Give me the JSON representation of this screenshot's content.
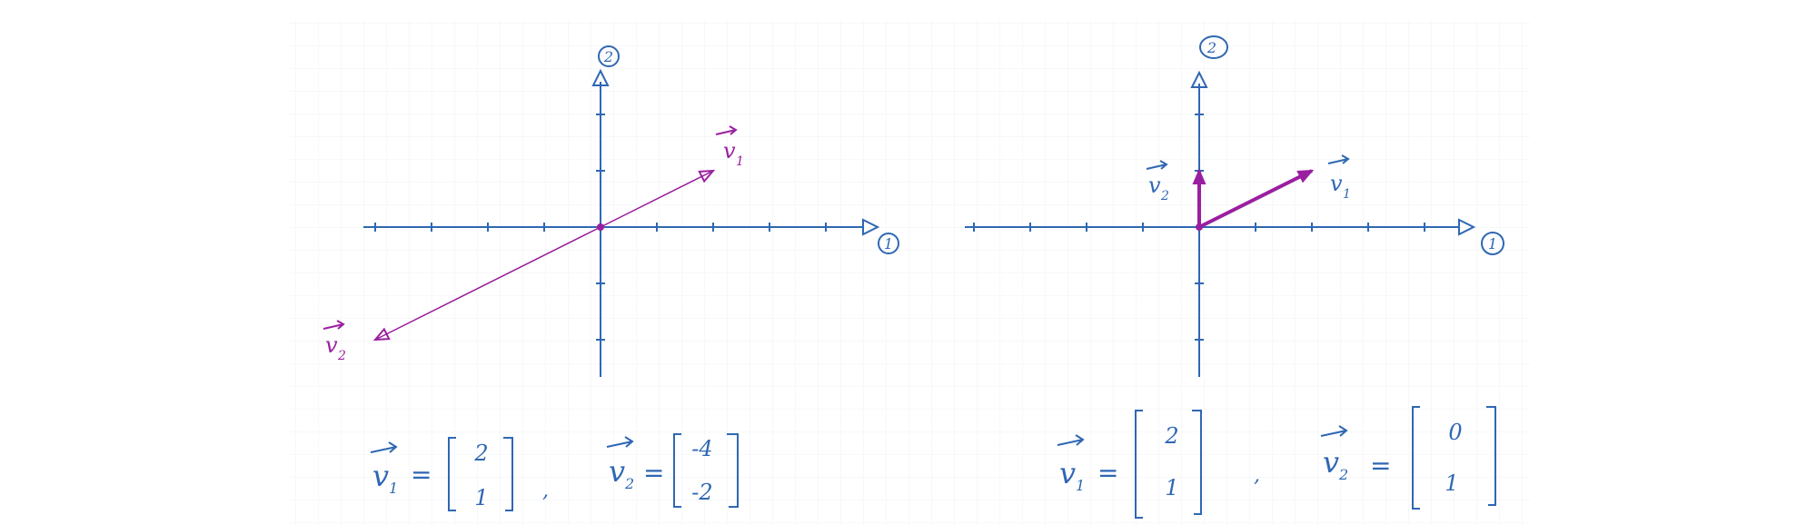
{
  "colors": {
    "axis": "#2f67b3",
    "vector": "#9a1fa0",
    "grid": "#eef0f4",
    "background": "#ffffff"
  },
  "left_plot": {
    "axis1_label": "1",
    "axis2_label": "2",
    "v1_label": "v",
    "v1_sub": "1",
    "v2_label": "v",
    "v2_sub": "2",
    "vectors": [
      {
        "name": "v1",
        "x": 2,
        "y": 1
      },
      {
        "name": "v2",
        "x": -4,
        "y": -2
      }
    ],
    "x_range": [
      -4,
      4
    ],
    "y_range": [
      -2,
      2
    ]
  },
  "right_plot": {
    "axis1_label": "1",
    "axis2_label": "2",
    "v1_label": "v",
    "v1_sub": "1",
    "v2_label": "v",
    "v2_sub": "2",
    "vectors": [
      {
        "name": "v1",
        "x": 2,
        "y": 1
      },
      {
        "name": "v2",
        "x": 0,
        "y": 1
      }
    ],
    "x_range": [
      -4,
      4
    ],
    "y_range": [
      -2,
      2
    ]
  },
  "equations": {
    "left": {
      "v1_name": "v",
      "v1_sub": "1",
      "v1_top": "2",
      "v1_bottom": "1",
      "separator": ",",
      "v2_name": "v",
      "v2_sub": "2",
      "v2_top": "-4",
      "v2_bottom": "-2",
      "equals": "="
    },
    "right": {
      "v1_name": "v",
      "v1_sub": "1",
      "v1_top": "2",
      "v1_bottom": "1",
      "separator": ",",
      "v2_name": "v",
      "v2_sub": "2",
      "v2_top": "0",
      "v2_bottom": "1",
      "equals": "="
    }
  }
}
